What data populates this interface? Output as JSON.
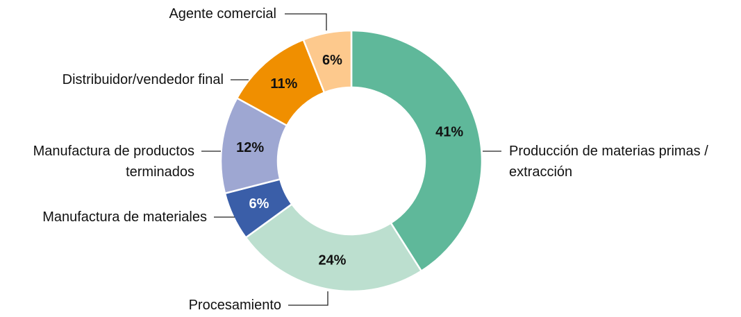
{
  "chart_data": {
    "type": "donut",
    "categories": [
      "Producción de materias primas / extracción",
      "Procesamiento",
      "Manufactura de materiales",
      "Manufactura de productos terminados",
      "Distribuidor/vendedor final",
      "Agente comercial"
    ],
    "values": [
      41,
      24,
      6,
      12,
      11,
      6
    ],
    "value_labels": [
      "41%",
      "24%",
      "6%",
      "12%",
      "11%",
      "6%"
    ],
    "colors": [
      "#5fb89a",
      "#bcdfcf",
      "#3a5ea8",
      "#9ea7d2",
      "#f08f00",
      "#fdc98d"
    ]
  }
}
